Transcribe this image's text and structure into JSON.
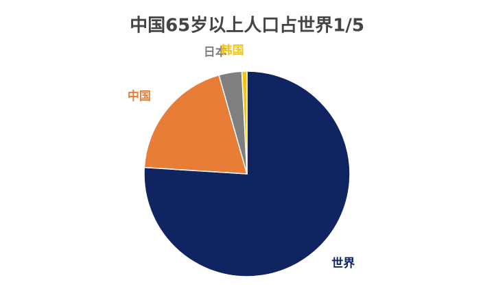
{
  "chart_data": {
    "type": "pie",
    "title": "中国65岁以上人口占世界1/5",
    "categories": [
      "世界",
      "中国",
      "日本",
      "韩国"
    ],
    "values": [
      76,
      19.6,
      3.6,
      0.8
    ],
    "colors": [
      "#0f2460",
      "#e87d37",
      "#7f7f7f",
      "#f0c419"
    ]
  }
}
